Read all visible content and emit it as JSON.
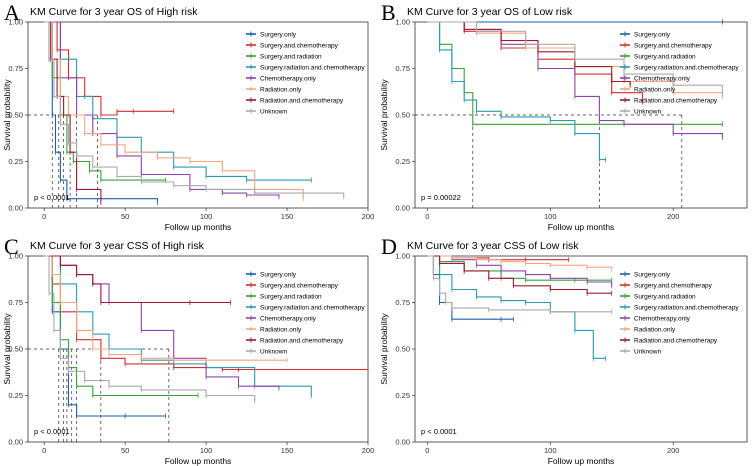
{
  "legend_labels": [
    "Surgery.only",
    "Surgery.and.chemotherapy",
    "Surgery.and.radiation",
    "Surgery.radiation.and.chemotherapy",
    "Chemotherapy.only",
    "Radiation.only",
    "Radiation.and.chemotherapy",
    "Unknown"
  ],
  "legend_colors": [
    "#1f5fa8",
    "#d32f2f",
    "#3aa23a",
    "#2a9ab0",
    "#8e44ad",
    "#f4a582",
    "#9b1b30",
    "#aaaaaa"
  ],
  "chart_data": [
    {
      "id": "A",
      "type": "line",
      "letter": "A",
      "title": "KM Curve for 3 year OS of High risk",
      "xlabel": "Follow up months",
      "ylabel": "Survival probability",
      "xlim": [
        -10,
        200
      ],
      "ylim": [
        0,
        1
      ],
      "xticks": [
        "0",
        "50",
        "100",
        "150",
        "200"
      ],
      "xtick_values": [
        0,
        50,
        100,
        150,
        200
      ],
      "yticks": [
        "0.00",
        "0.25",
        "0.50",
        "0.75",
        "1.00"
      ],
      "ytick_values": [
        0,
        0.25,
        0.5,
        0.75,
        1
      ],
      "pvalue": "p < 0.0001",
      "median_lines": [
        5,
        9,
        12,
        16,
        20,
        33
      ],
      "series": [
        {
          "name": "Surgery.only",
          "x": [
            0,
            3,
            5,
            7,
            10,
            14,
            70
          ],
          "y": [
            1,
            0.8,
            0.5,
            0.3,
            0.15,
            0.05,
            0.03
          ]
        },
        {
          "name": "Surgery.and.chemotherapy",
          "x": [
            0,
            8,
            15,
            25,
            35,
            45,
            55,
            80
          ],
          "y": [
            1,
            0.85,
            0.7,
            0.6,
            0.5,
            0.52,
            0.52,
            0.52
          ]
        },
        {
          "name": "Surgery.and.radiation",
          "x": [
            0,
            5,
            10,
            14,
            18,
            28,
            35,
            75
          ],
          "y": [
            1,
            0.7,
            0.5,
            0.3,
            0.25,
            0.2,
            0.15,
            0.15
          ]
        },
        {
          "name": "Surgery.radiation.and.chemotherapy",
          "x": [
            0,
            10,
            20,
            30,
            45,
            60,
            80,
            100,
            125,
            165
          ],
          "y": [
            1,
            0.8,
            0.6,
            0.48,
            0.38,
            0.3,
            0.22,
            0.17,
            0.15,
            0.15
          ]
        },
        {
          "name": "Chemotherapy.only",
          "x": [
            0,
            10,
            20,
            30,
            45,
            60,
            90,
            110,
            125,
            145
          ],
          "y": [
            1,
            0.7,
            0.5,
            0.4,
            0.28,
            0.18,
            0.1,
            0.08,
            0.07,
            0.06
          ]
        },
        {
          "name": "Radiation.only",
          "x": [
            0,
            5,
            10,
            15,
            25,
            35,
            50,
            70,
            90,
            110,
            130,
            160
          ],
          "y": [
            1,
            0.8,
            0.6,
            0.5,
            0.4,
            0.34,
            0.3,
            0.27,
            0.25,
            0.2,
            0.1,
            0.05
          ]
        },
        {
          "name": "Radiation.and.chemotherapy",
          "x": [
            0,
            4,
            8,
            12,
            16,
            20,
            35
          ],
          "y": [
            1,
            0.8,
            0.6,
            0.5,
            0.3,
            0.1,
            0.03
          ]
        },
        {
          "name": "Unknown",
          "x": [
            0,
            3,
            6,
            10,
            15,
            20,
            30,
            45,
            60,
            80,
            100,
            130,
            185
          ],
          "y": [
            1,
            0.8,
            0.6,
            0.45,
            0.35,
            0.28,
            0.22,
            0.17,
            0.14,
            0.12,
            0.1,
            0.08,
            0.06
          ]
        }
      ]
    },
    {
      "id": "B",
      "type": "line",
      "letter": "B",
      "title": "KM Curve for 3 year OS of Low risk",
      "xlabel": "Follow up months",
      "ylabel": "Survival probability",
      "xlim": [
        -10,
        260
      ],
      "ylim": [
        0,
        1
      ],
      "xticks": [
        "0",
        "100",
        "200"
      ],
      "xtick_values": [
        0,
        100,
        200
      ],
      "yticks": [
        "0.00",
        "0.25",
        "0.50",
        "0.75",
        "1.00"
      ],
      "ytick_values": [
        0,
        0.25,
        0.5,
        0.75,
        1
      ],
      "pvalue": "p = 0.00022",
      "median_lines": [
        37,
        140,
        207
      ],
      "series": [
        {
          "name": "Surgery.only",
          "x": [
            0,
            240
          ],
          "y": [
            1,
            1
          ]
        },
        {
          "name": "Surgery.and.chemotherapy",
          "x": [
            0,
            30,
            60,
            90,
            120,
            150,
            175
          ],
          "y": [
            1,
            0.95,
            0.86,
            0.8,
            0.72,
            0.62,
            0.57
          ]
        },
        {
          "name": "Surgery.and.radiation",
          "x": [
            0,
            10,
            20,
            30,
            37,
            120,
            240
          ],
          "y": [
            1,
            0.88,
            0.75,
            0.62,
            0.45,
            0.45,
            0.45
          ]
        },
        {
          "name": "Surgery.radiation.and.chemotherapy",
          "x": [
            0,
            10,
            20,
            30,
            40,
            60,
            100,
            120,
            140,
            145
          ],
          "y": [
            1,
            0.85,
            0.68,
            0.58,
            0.52,
            0.49,
            0.47,
            0.4,
            0.26,
            0.26
          ]
        },
        {
          "name": "Chemotherapy.only",
          "x": [
            0,
            30,
            60,
            90,
            120,
            140,
            160,
            200,
            240
          ],
          "y": [
            1,
            0.96,
            0.88,
            0.75,
            0.6,
            0.47,
            0.45,
            0.4,
            0.38
          ]
        },
        {
          "name": "Radiation.only",
          "x": [
            0,
            40,
            80,
            120,
            160,
            200,
            240
          ],
          "y": [
            1,
            0.94,
            0.86,
            0.76,
            0.68,
            0.62,
            0.6
          ]
        },
        {
          "name": "Radiation.and.chemotherapy",
          "x": [
            0,
            30,
            60,
            90,
            120,
            150,
            165
          ],
          "y": [
            1,
            0.96,
            0.9,
            0.84,
            0.76,
            0.68,
            0.66
          ]
        },
        {
          "name": "Unknown",
          "x": [
            0,
            40,
            80,
            120,
            160,
            200,
            240
          ],
          "y": [
            1,
            0.95,
            0.88,
            0.8,
            0.72,
            0.66,
            0.62
          ]
        }
      ]
    },
    {
      "id": "C",
      "type": "line",
      "letter": "C",
      "title": "KM Curve for 3 year CSS of High risk",
      "xlabel": "Follow up months",
      "ylabel": "Survival probability",
      "xlim": [
        -10,
        200
      ],
      "ylim": [
        0,
        1
      ],
      "xticks": [
        "0",
        "50",
        "100",
        "150",
        "200"
      ],
      "xtick_values": [
        0,
        50,
        100,
        150,
        200
      ],
      "yticks": [
        "0.00",
        "0.25",
        "0.50",
        "0.75",
        "1.00"
      ],
      "ytick_values": [
        0,
        0.25,
        0.5,
        0.75,
        1
      ],
      "pvalue": "p < 0.0001",
      "median_lines": [
        9,
        12,
        14,
        17,
        20,
        35,
        77
      ],
      "series": [
        {
          "name": "Surgery.only",
          "x": [
            0,
            5,
            10,
            15,
            20,
            50,
            75
          ],
          "y": [
            1,
            0.7,
            0.5,
            0.2,
            0.14,
            0.14,
            0.14
          ]
        },
        {
          "name": "Surgery.and.chemotherapy",
          "x": [
            0,
            5,
            10,
            20,
            35,
            50,
            80,
            110,
            120,
            200
          ],
          "y": [
            1,
            0.85,
            0.7,
            0.55,
            0.45,
            0.42,
            0.4,
            0.39,
            0.39,
            0.39
          ]
        },
        {
          "name": "Surgery.and.radiation",
          "x": [
            0,
            5,
            10,
            15,
            20,
            30,
            95
          ],
          "y": [
            1,
            0.75,
            0.55,
            0.4,
            0.3,
            0.25,
            0.25
          ]
        },
        {
          "name": "Surgery.radiation.and.chemotherapy",
          "x": [
            0,
            10,
            20,
            30,
            40,
            60,
            80,
            100,
            130,
            165
          ],
          "y": [
            1,
            0.85,
            0.7,
            0.58,
            0.5,
            0.44,
            0.42,
            0.4,
            0.3,
            0.25
          ]
        },
        {
          "name": "Chemotherapy.only",
          "x": [
            0,
            10,
            20,
            30,
            40,
            60,
            80,
            100,
            120,
            145
          ],
          "y": [
            1,
            0.95,
            0.9,
            0.85,
            0.75,
            0.6,
            0.45,
            0.35,
            0.3,
            0.29
          ]
        },
        {
          "name": "Radiation.only",
          "x": [
            0,
            5,
            10,
            20,
            30,
            40,
            60,
            80,
            100,
            150
          ],
          "y": [
            1,
            0.9,
            0.75,
            0.6,
            0.5,
            0.47,
            0.45,
            0.44,
            0.44,
            0.44
          ]
        },
        {
          "name": "Radiation.and.chemotherapy",
          "x": [
            0,
            10,
            20,
            30,
            35,
            90,
            115
          ],
          "y": [
            1,
            0.95,
            0.9,
            0.85,
            0.75,
            0.75,
            0.75
          ]
        },
        {
          "name": "Unknown",
          "x": [
            0,
            3,
            6,
            10,
            15,
            25,
            40,
            60,
            100,
            130
          ],
          "y": [
            1,
            0.8,
            0.6,
            0.45,
            0.38,
            0.33,
            0.3,
            0.28,
            0.25,
            0.22
          ]
        }
      ]
    },
    {
      "id": "D",
      "type": "line",
      "letter": "D",
      "title": "KM Curve for 3 year CSS of Low risk",
      "xlabel": "Follow up months",
      "ylabel": "Survival probability",
      "xlim": [
        -10,
        260
      ],
      "ylim": [
        0,
        1
      ],
      "xticks": [
        "0",
        "100",
        "200"
      ],
      "xtick_values": [
        0,
        100,
        200
      ],
      "yticks": [
        "0.00",
        "0.25",
        "0.50",
        "0.75",
        "1.00"
      ],
      "ytick_values": [
        0,
        0.25,
        0.5,
        0.75,
        1
      ],
      "pvalue": "p < 0.0001",
      "median_lines": [],
      "series": [
        {
          "name": "Surgery.only",
          "x": [
            0,
            5,
            10,
            20,
            60,
            70
          ],
          "y": [
            1,
            0.9,
            0.75,
            0.66,
            0.66,
            0.66
          ]
        },
        {
          "name": "Surgery.and.chemotherapy",
          "x": [
            0,
            20,
            50,
            80,
            115
          ],
          "y": [
            1,
            0.99,
            0.98,
            0.98,
            0.98
          ]
        },
        {
          "name": "Surgery.and.radiation",
          "x": [
            0,
            10,
            30,
            60,
            80,
            120,
            150
          ],
          "y": [
            1,
            0.97,
            0.92,
            0.88,
            0.87,
            0.87,
            0.87
          ]
        },
        {
          "name": "Surgery.radiation.and.chemotherapy",
          "x": [
            0,
            10,
            20,
            40,
            60,
            80,
            100,
            120,
            135,
            145
          ],
          "y": [
            1,
            0.9,
            0.82,
            0.78,
            0.76,
            0.75,
            0.7,
            0.6,
            0.45,
            0.45
          ]
        },
        {
          "name": "Chemotherapy.only",
          "x": [
            0,
            20,
            40,
            60,
            80,
            100,
            130,
            150
          ],
          "y": [
            1,
            0.98,
            0.95,
            0.92,
            0.9,
            0.88,
            0.86,
            0.84
          ]
        },
        {
          "name": "Radiation.only",
          "x": [
            0,
            20,
            40,
            60,
            80,
            100,
            130,
            150
          ],
          "y": [
            1,
            0.99,
            0.98,
            0.97,
            0.96,
            0.95,
            0.94,
            0.93
          ]
        },
        {
          "name": "Radiation.and.chemotherapy",
          "x": [
            0,
            10,
            30,
            50,
            70,
            100,
            130,
            150
          ],
          "y": [
            1,
            0.96,
            0.92,
            0.88,
            0.84,
            0.82,
            0.8,
            0.8
          ]
        },
        {
          "name": "Unknown",
          "x": [
            0,
            5,
            10,
            15,
            20,
            50,
            100,
            150
          ],
          "y": [
            1,
            0.88,
            0.8,
            0.75,
            0.72,
            0.71,
            0.7,
            0.7
          ]
        }
      ]
    }
  ]
}
